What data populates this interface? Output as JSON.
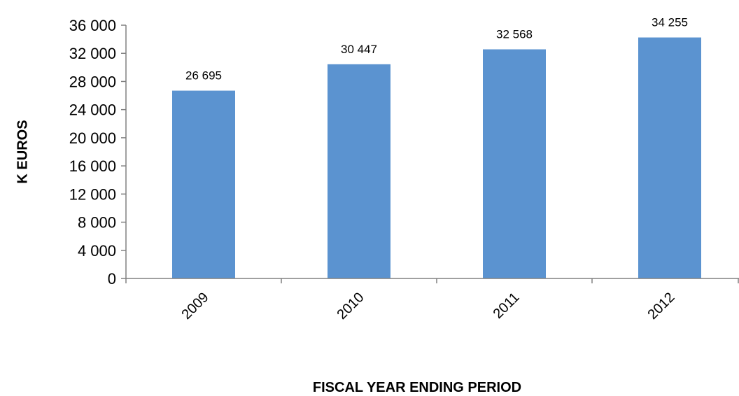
{
  "chart_data": {
    "type": "bar",
    "categories": [
      "2009",
      "2010",
      "2011",
      "2012"
    ],
    "values": [
      26695,
      30447,
      32568,
      34255
    ],
    "value_labels": [
      "26 695",
      "30 447",
      "32 568",
      "34 255"
    ],
    "xlabel": "FISCAL YEAR ENDING PERIOD",
    "ylabel": "K EUROS",
    "ylim": [
      0,
      36000
    ],
    "yticks": [
      0,
      4000,
      8000,
      12000,
      16000,
      20000,
      24000,
      28000,
      32000,
      36000
    ],
    "ytick_labels": [
      "0",
      "4 000",
      "8 000",
      "12 000",
      "16 000",
      "20 000",
      "24 000",
      "28 000",
      "32 000",
      "36 000"
    ],
    "grid": false,
    "legend": "none",
    "bar_color": "#5b93d0"
  }
}
